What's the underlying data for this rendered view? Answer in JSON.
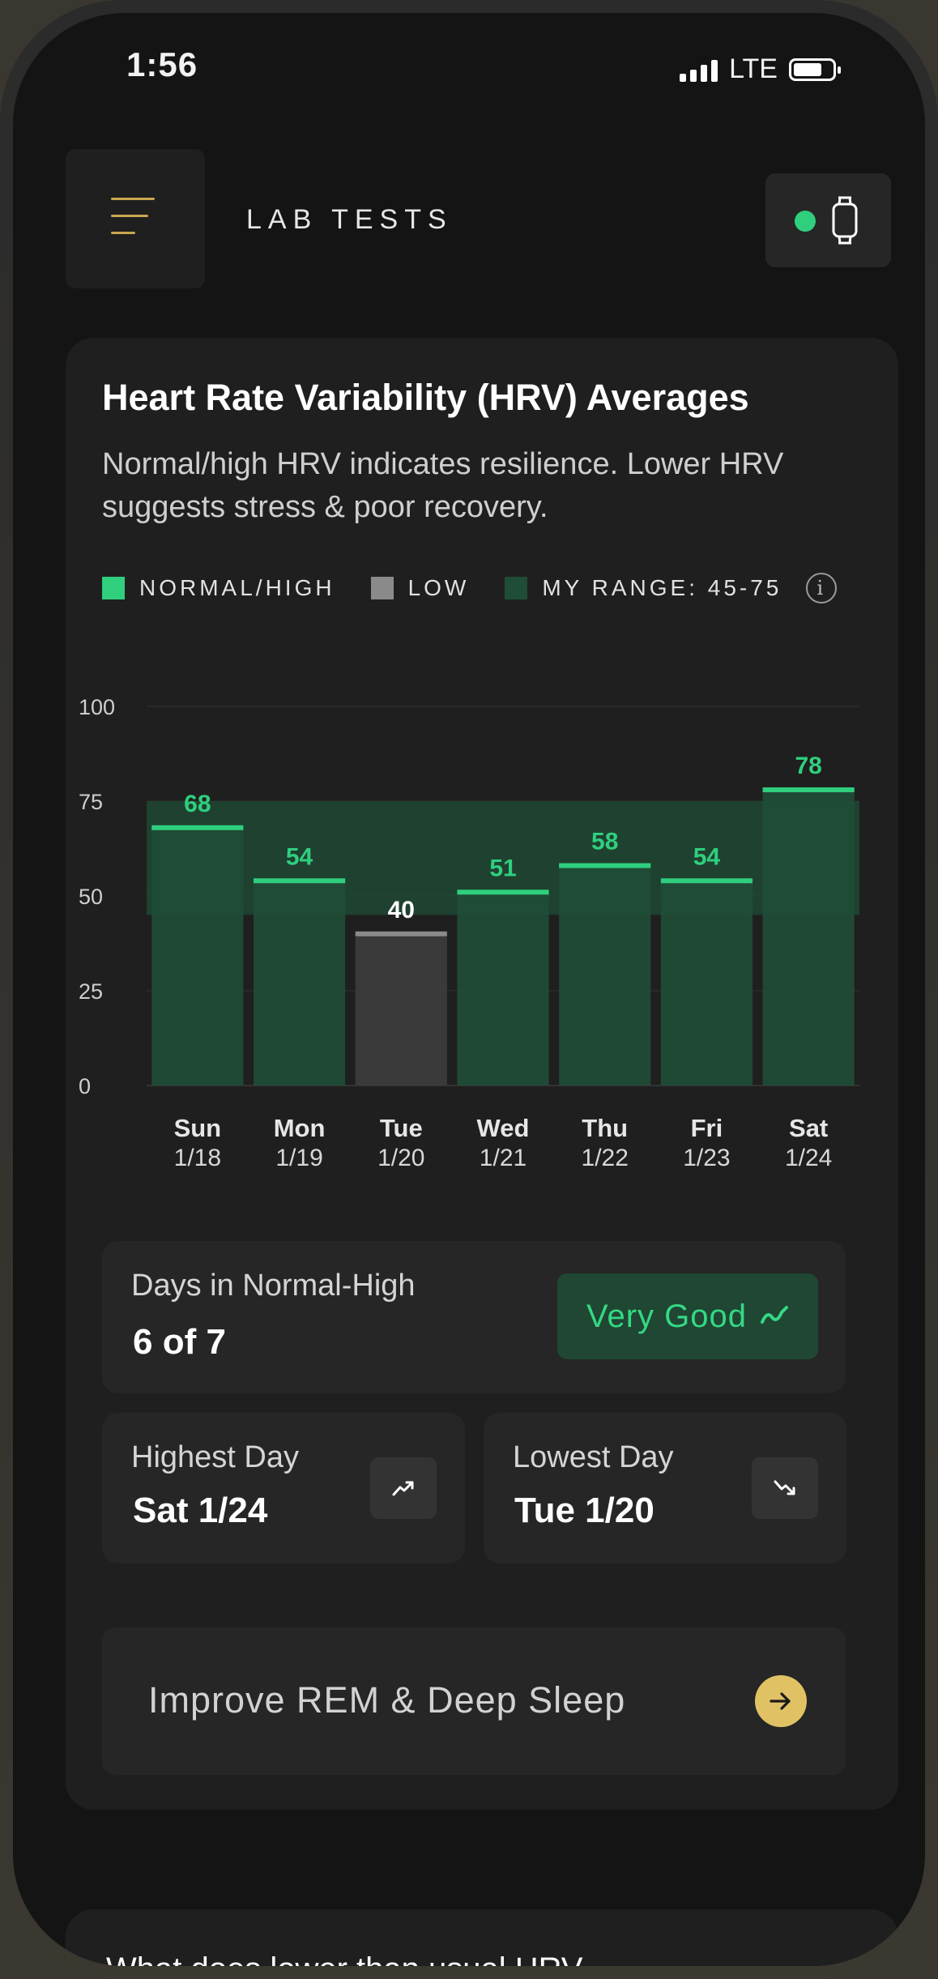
{
  "status_bar": {
    "time": "1:56",
    "network": "LTE"
  },
  "header": {
    "title": "LAB TESTS"
  },
  "hrv_card": {
    "title": "Heart Rate Variability (HRV) Averages",
    "description": "Normal/high HRV indicates resilience. Lower HRV suggests stress & poor recovery.",
    "legend": [
      {
        "label": "NORMAL/HIGH",
        "color": "#2fcf7e"
      },
      {
        "label": "LOW",
        "color": "#8a8a8a"
      },
      {
        "label": "MY RANGE: 45-75",
        "color": "#1f4d37"
      }
    ]
  },
  "chart_data": {
    "type": "bar",
    "categories": [
      "Sun",
      "Mon",
      "Tue",
      "Wed",
      "Thu",
      "Fri",
      "Sat"
    ],
    "dates": [
      "1/18",
      "1/19",
      "1/20",
      "1/21",
      "1/22",
      "1/23",
      "1/24"
    ],
    "values": [
      68,
      54,
      40,
      51,
      58,
      54,
      78
    ],
    "status": [
      "normal",
      "normal",
      "low",
      "normal",
      "normal",
      "normal",
      "normal"
    ],
    "y_ticks": [
      0,
      25,
      50,
      75,
      100
    ],
    "ylim": [
      0,
      100
    ],
    "my_range": [
      45,
      75
    ],
    "colors": {
      "normal": "#2fcf7e",
      "low": "#8a8a8a",
      "range": "#1f4d37"
    }
  },
  "stats": {
    "days_label": "Days in Normal-High",
    "days_value": "6 of 7",
    "rating": "Very Good",
    "highest_label": "Highest Day",
    "highest_value": "Sat 1/24",
    "lowest_label": "Lowest Day",
    "lowest_value": "Tue 1/20"
  },
  "cta": {
    "label": "Improve REM & Deep Sleep"
  },
  "next_card": {
    "title": "What does lower than usual HRV"
  }
}
